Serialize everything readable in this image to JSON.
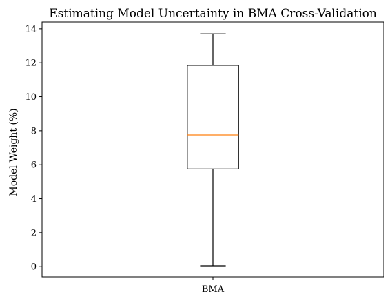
{
  "chart_data": {
    "type": "box",
    "title": "Estimating Model Uncertainty in BMA Cross-Validation",
    "xlabel": "",
    "ylabel": "Model Weight (%)",
    "categories": [
      "BMA"
    ],
    "ylim": [
      -0.6,
      14.4
    ],
    "yticks": [
      0,
      2,
      4,
      6,
      8,
      10,
      12,
      14
    ],
    "grid": false,
    "legend": "none",
    "series": [
      {
        "category": "BMA",
        "min": 0.05,
        "q1": 5.75,
        "median": 7.75,
        "q3": 11.85,
        "max": 13.7
      }
    ],
    "colors": {
      "box": "#000000",
      "median": "#ff7f0e",
      "whisker": "#000000"
    }
  }
}
